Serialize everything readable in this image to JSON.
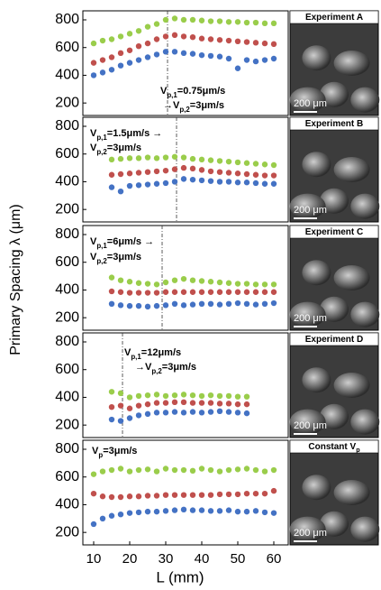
{
  "figure": {
    "xlabel": "L (mm)",
    "ylabel": "Primary Spacing λ (μm)"
  },
  "chart_data": [
    {
      "type": "scatter",
      "xlim": [
        7,
        64
      ],
      "ylim": [
        110,
        865
      ],
      "yticks": [
        200,
        400,
        600,
        800
      ],
      "vline": 30.5,
      "x": [
        10,
        12.5,
        15,
        17.5,
        20,
        22.5,
        25,
        27.5,
        30,
        32.5,
        35,
        37.5,
        40,
        42.5,
        45,
        47.5,
        50,
        52.5,
        55,
        57.5,
        60
      ],
      "series": [
        {
          "color": "#9acd4b",
          "values": [
            630,
            650,
            660,
            680,
            700,
            720,
            750,
            770,
            800,
            810,
            800,
            800,
            795,
            790,
            790,
            785,
            785,
            780,
            780,
            775,
            775
          ]
        },
        {
          "color": "#c0504d",
          "values": [
            490,
            510,
            530,
            560,
            580,
            610,
            630,
            660,
            680,
            690,
            680,
            675,
            665,
            660,
            655,
            650,
            645,
            640,
            635,
            630,
            625
          ]
        },
        {
          "color": "#4472c4",
          "values": [
            400,
            420,
            440,
            470,
            490,
            510,
            530,
            550,
            570,
            570,
            560,
            555,
            545,
            540,
            535,
            520,
            450,
            510,
            500,
            510,
            520
          ]
        }
      ],
      "annotation": [
        [
          {
            "text": "V"
          },
          {
            "text": "p,1",
            "sub": true
          },
          {
            "text": "=0.75μm/s"
          }
        ],
        [
          {
            "text": "→V"
          },
          {
            "text": "p,2",
            "sub": true
          },
          {
            "text": "=3μm/s"
          }
        ]
      ],
      "image_label": [
        {
          "text": "Experiment A"
        }
      ],
      "scale_label": "200 μm"
    },
    {
      "type": "scatter",
      "xlim": [
        7,
        64
      ],
      "ylim": [
        110,
        865
      ],
      "yticks": [
        200,
        400,
        600,
        800
      ],
      "vline": 33,
      "x": [
        15,
        17.5,
        20,
        22.5,
        25,
        27.5,
        30,
        32.5,
        35,
        37.5,
        40,
        42.5,
        45,
        47.5,
        50,
        52.5,
        55,
        57.5,
        60
      ],
      "series": [
        {
          "color": "#9acd4b",
          "values": [
            560,
            565,
            570,
            570,
            575,
            570,
            575,
            580,
            575,
            565,
            560,
            555,
            550,
            545,
            540,
            535,
            530,
            525,
            520
          ]
        },
        {
          "color": "#c0504d",
          "values": [
            450,
            455,
            460,
            465,
            470,
            475,
            480,
            490,
            500,
            495,
            485,
            475,
            470,
            465,
            460,
            455,
            450,
            445,
            445
          ]
        },
        {
          "color": "#4472c4",
          "values": [
            360,
            330,
            370,
            375,
            380,
            385,
            390,
            400,
            420,
            415,
            410,
            405,
            400,
            400,
            395,
            395,
            390,
            385,
            385
          ]
        }
      ],
      "annotation": [
        [
          {
            "text": "V"
          },
          {
            "text": "p,1",
            "sub": true
          },
          {
            "text": "=1.5μm/s →"
          }
        ],
        [
          {
            "text": "V"
          },
          {
            "text": "p,2",
            "sub": true
          },
          {
            "text": "=3μm/s"
          }
        ]
      ],
      "image_label": [
        {
          "text": "Experiment B"
        }
      ],
      "scale_label": "200 μm"
    },
    {
      "type": "scatter",
      "xlim": [
        7,
        64
      ],
      "ylim": [
        110,
        865
      ],
      "yticks": [
        200,
        400,
        600,
        800
      ],
      "vline": 29,
      "x": [
        15,
        17.5,
        20,
        22.5,
        25,
        27.5,
        30,
        32.5,
        35,
        37.5,
        40,
        42.5,
        45,
        47.5,
        50,
        52.5,
        55,
        57.5,
        60
      ],
      "series": [
        {
          "color": "#9acd4b",
          "values": [
            490,
            470,
            460,
            450,
            445,
            440,
            455,
            470,
            480,
            470,
            465,
            460,
            455,
            450,
            445,
            445,
            440,
            440,
            440
          ]
        },
        {
          "color": "#c0504d",
          "values": [
            390,
            385,
            380,
            380,
            380,
            380,
            385,
            385,
            385,
            385,
            385,
            385,
            385,
            385,
            385,
            385,
            385,
            385,
            385
          ]
        },
        {
          "color": "#4472c4",
          "values": [
            300,
            290,
            285,
            285,
            280,
            285,
            290,
            300,
            290,
            295,
            300,
            300,
            295,
            300,
            305,
            300,
            295,
            300,
            305
          ]
        }
      ],
      "annotation": [
        [
          {
            "text": "V"
          },
          {
            "text": "p,1",
            "sub": true
          },
          {
            "text": "=6μm/s  →"
          }
        ],
        [
          {
            "text": "V"
          },
          {
            "text": "p,2",
            "sub": true
          },
          {
            "text": "=3μm/s"
          }
        ]
      ],
      "image_label": [
        {
          "text": "Experiment C"
        }
      ],
      "scale_label": "200 μm"
    },
    {
      "type": "scatter",
      "xlim": [
        7,
        64
      ],
      "ylim": [
        110,
        865
      ],
      "yticks": [
        200,
        400,
        600,
        800
      ],
      "vline": 18,
      "x": [
        15,
        17.5,
        20,
        22.5,
        25,
        27.5,
        30,
        32.5,
        35,
        37.5,
        40,
        42.5,
        45,
        47.5,
        50,
        52.5
      ],
      "series": [
        {
          "color": "#9acd4b",
          "values": [
            440,
            430,
            400,
            410,
            415,
            420,
            410,
            415,
            420,
            415,
            410,
            415,
            410,
            410,
            405,
            405
          ]
        },
        {
          "color": "#c0504d",
          "values": [
            330,
            340,
            320,
            340,
            350,
            360,
            360,
            365,
            365,
            360,
            360,
            360,
            355,
            355,
            350,
            350
          ]
        },
        {
          "color": "#4472c4",
          "values": [
            240,
            230,
            250,
            270,
            280,
            290,
            290,
            295,
            290,
            295,
            290,
            295,
            300,
            295,
            290,
            285
          ]
        }
      ],
      "annotation": [
        [
          {
            "text": "V"
          },
          {
            "text": "p,1",
            "sub": true
          },
          {
            "text": "=12μm/s"
          }
        ],
        [
          {
            "text": "→V"
          },
          {
            "text": "p,2",
            "sub": true
          },
          {
            "text": "=3μm/s"
          }
        ]
      ],
      "image_label": [
        {
          "text": "Experiment D"
        }
      ],
      "scale_label": "200 μm"
    },
    {
      "type": "scatter",
      "xlim": [
        7,
        64
      ],
      "ylim": [
        110,
        865
      ],
      "yticks": [
        200,
        400,
        600,
        800
      ],
      "xticks": [
        10,
        20,
        30,
        40,
        50,
        60
      ],
      "x": [
        10,
        12.5,
        15,
        17.5,
        20,
        22.5,
        25,
        27.5,
        30,
        32.5,
        35,
        37.5,
        40,
        42.5,
        45,
        47.5,
        50,
        52.5,
        55,
        57.5,
        60
      ],
      "series": [
        {
          "color": "#9acd4b",
          "values": [
            620,
            640,
            650,
            660,
            640,
            650,
            655,
            640,
            660,
            650,
            650,
            645,
            660,
            650,
            640,
            650,
            655,
            660,
            650,
            640,
            650
          ]
        },
        {
          "color": "#c0504d",
          "values": [
            480,
            460,
            455,
            455,
            460,
            460,
            465,
            465,
            470,
            470,
            470,
            470,
            470,
            470,
            475,
            475,
            475,
            480,
            480,
            480,
            500
          ]
        },
        {
          "color": "#4472c4",
          "values": [
            260,
            300,
            320,
            330,
            340,
            345,
            350,
            350,
            355,
            360,
            365,
            360,
            360,
            355,
            355,
            360,
            350,
            350,
            355,
            345,
            340
          ]
        }
      ],
      "annotation": [
        [
          {
            "text": "V"
          },
          {
            "text": "p",
            "sub": true
          },
          {
            "text": "=3μm/s"
          }
        ]
      ],
      "image_label": [
        {
          "text": "Constant V"
        },
        {
          "text": "p",
          "sub": true
        }
      ],
      "scale_label": "200 μm"
    }
  ]
}
